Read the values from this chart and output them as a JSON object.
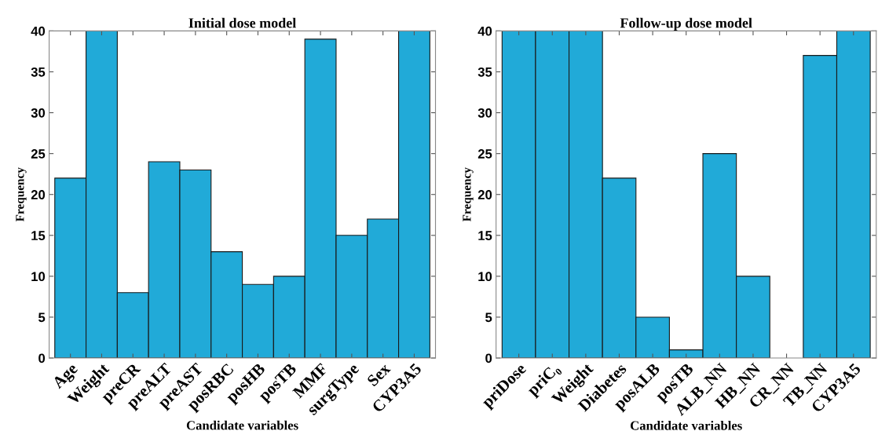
{
  "chart_data": [
    {
      "type": "bar",
      "title": "Initial dose model",
      "xlabel": "Candidate variables",
      "ylabel": "Frequency",
      "categories": [
        "Age",
        "Weight",
        "preCR",
        "preALT",
        "preAST",
        "posRBC",
        "posHB",
        "posTB",
        "MMF",
        "surgType",
        "Sex",
        "CYP3A5"
      ],
      "values": [
        22,
        40,
        8,
        24,
        23,
        13,
        9,
        10,
        39,
        15,
        17,
        40
      ],
      "color": "#21aad8",
      "ylim": [
        0,
        40
      ],
      "yticks": [
        0,
        5,
        10,
        15,
        20,
        25,
        30,
        35,
        40
      ],
      "grid": false
    },
    {
      "type": "bar",
      "title": "Follow-up dose model",
      "xlabel": "Candidate variables",
      "ylabel": "Frequency",
      "categories": [
        "priDose",
        "priC₀",
        "Weight",
        "Diabetes",
        "posALB",
        "posTB",
        "ALB_NN",
        "HB_NN",
        "CR_NN",
        "TB_NN",
        "CYP3A5"
      ],
      "values": [
        40,
        40,
        40,
        22,
        5,
        1,
        25,
        10,
        0,
        37,
        40
      ],
      "color": "#21aad8",
      "ylim": [
        0,
        40
      ],
      "yticks": [
        0,
        5,
        10,
        15,
        20,
        25,
        30,
        35,
        40
      ],
      "grid": false
    }
  ]
}
